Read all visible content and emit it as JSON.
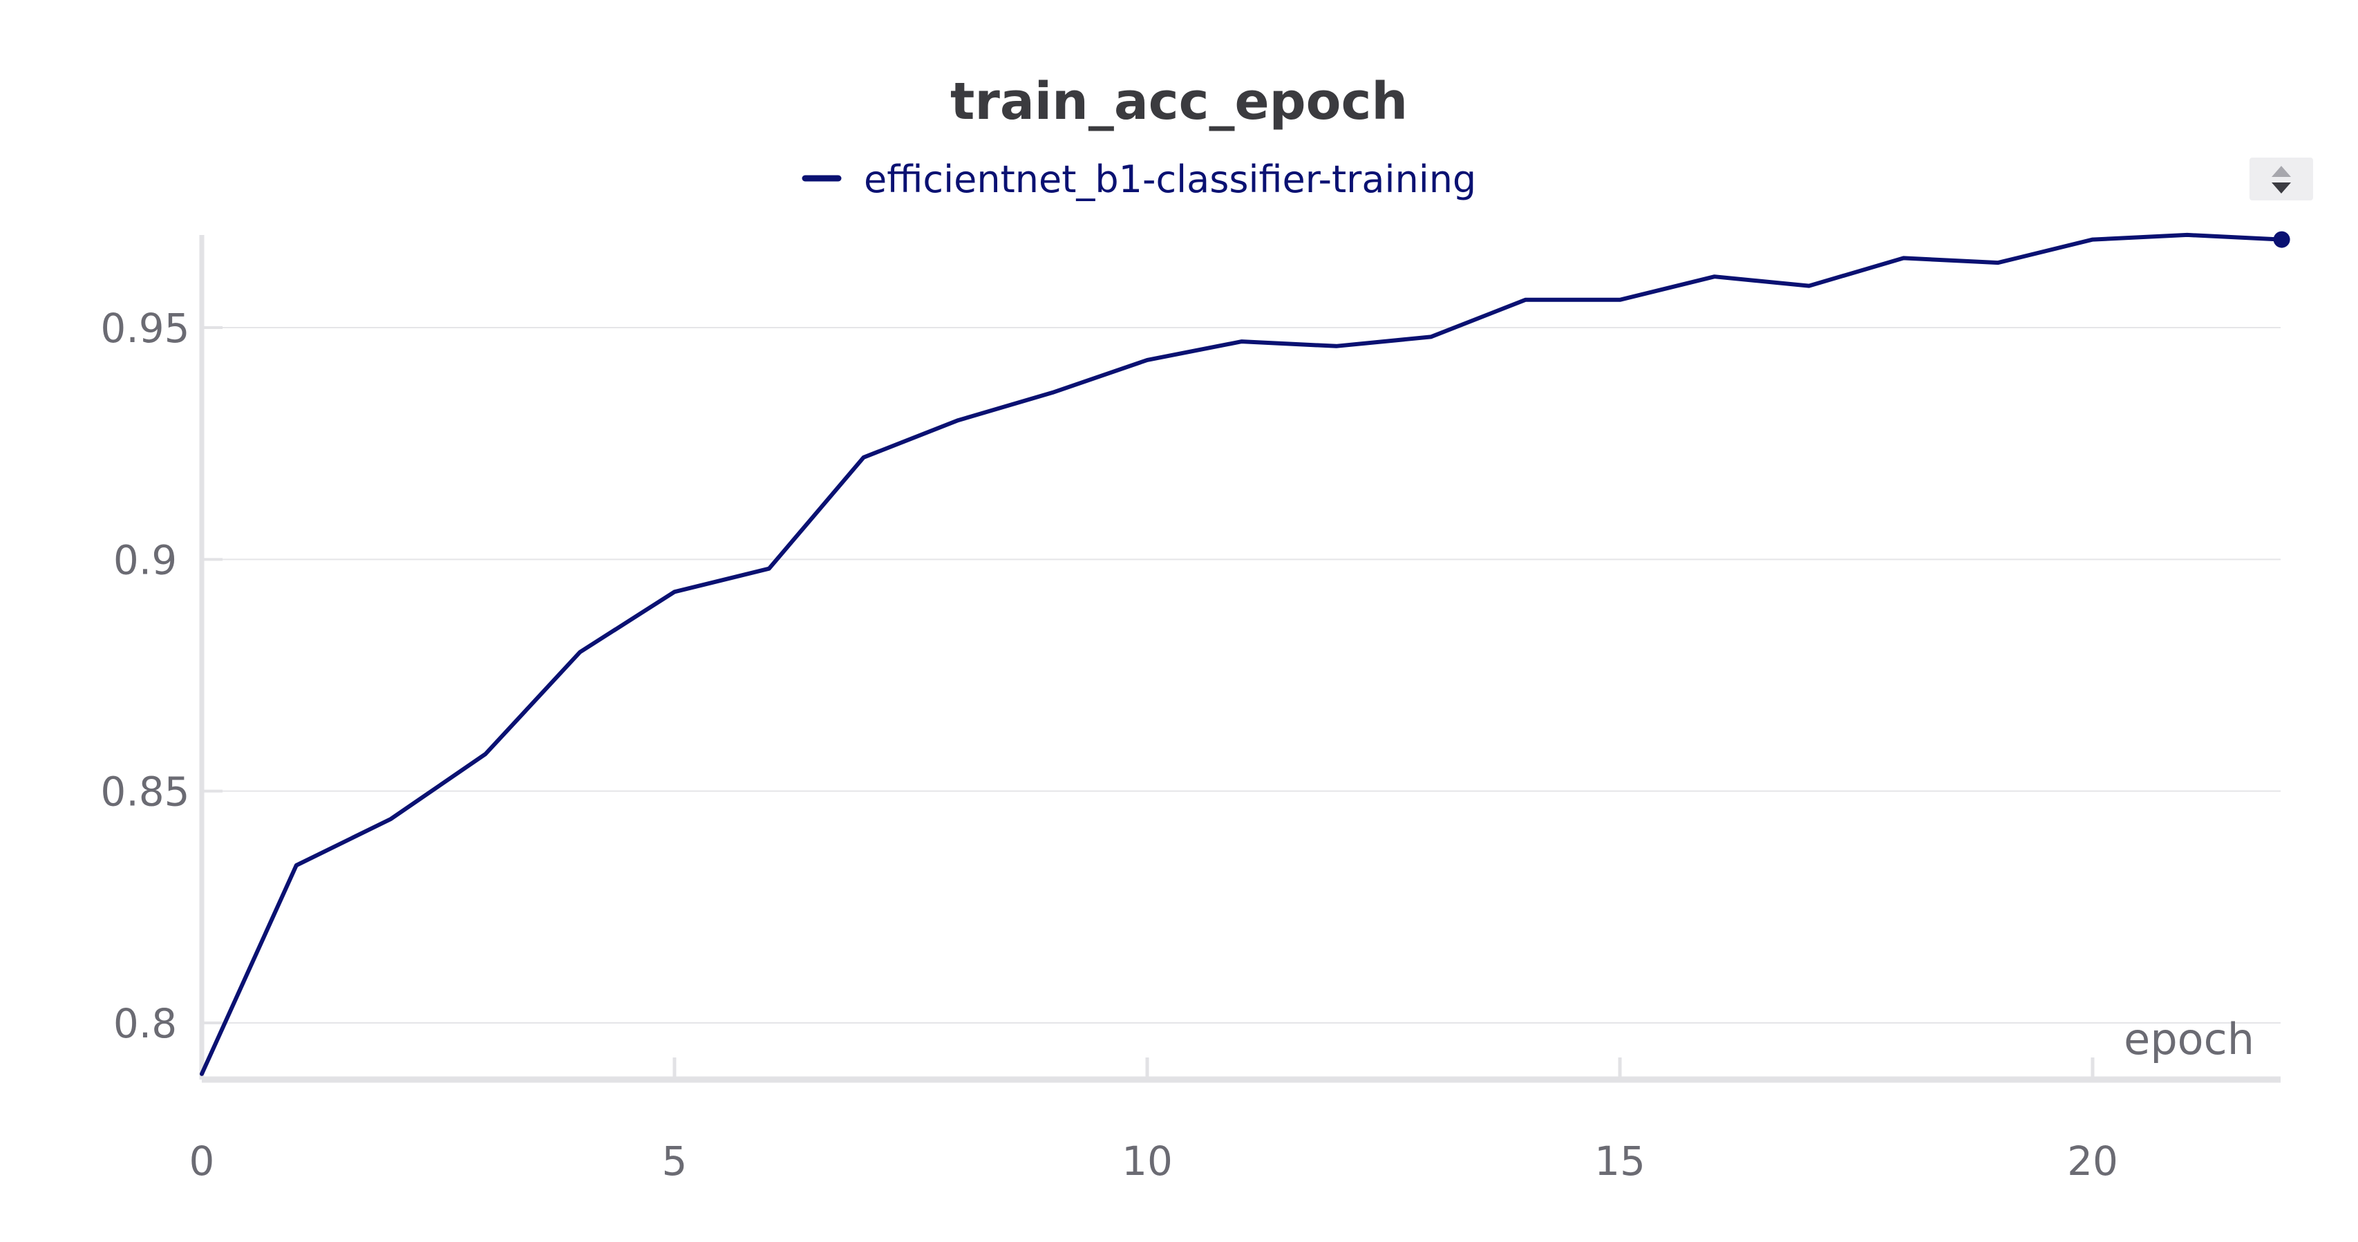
{
  "chart_data": {
    "type": "line",
    "title": "train_acc_epoch",
    "xlabel": "epoch",
    "ylabel": "",
    "xlim": [
      0,
      22
    ],
    "ylim": [
      0.788,
      0.97
    ],
    "x_ticks": [
      0,
      5,
      10,
      15,
      20
    ],
    "x_tick_labels": [
      "0",
      "5",
      "10",
      "15",
      "20"
    ],
    "y_ticks": [
      0.8,
      0.85,
      0.9,
      0.95
    ],
    "y_tick_labels": [
      "0.8",
      "0.85",
      "0.9",
      "0.95"
    ],
    "grid": true,
    "legend_position": "top-center",
    "series": [
      {
        "name": "efficientnet_b1-classifier-training",
        "color": "#0a1172",
        "x": [
          0,
          1,
          2,
          3,
          4,
          5,
          6,
          7,
          8,
          9,
          10,
          11,
          12,
          13,
          14,
          15,
          16,
          17,
          18,
          19,
          20,
          21,
          22
        ],
        "values": [
          0.789,
          0.834,
          0.844,
          0.858,
          0.88,
          0.893,
          0.898,
          0.922,
          0.93,
          0.936,
          0.943,
          0.947,
          0.946,
          0.948,
          0.956,
          0.956,
          0.961,
          0.959,
          0.965,
          0.964,
          0.969,
          0.97,
          0.969
        ]
      }
    ]
  },
  "ui": {
    "sort_control_icon": "sort-updown-icon",
    "background_color": "#ffffff",
    "gridline_color": "#e5e5e8",
    "axis_color": "#e2e2e5"
  }
}
